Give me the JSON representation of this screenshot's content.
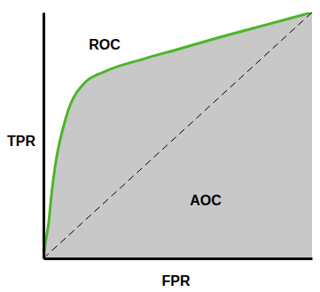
{
  "chart_data": {
    "type": "line",
    "xlabel": "FPR",
    "ylabel": "TPR",
    "annotations": [
      "ROC",
      "AOC"
    ],
    "xlim": [
      0,
      1
    ],
    "ylim": [
      0,
      1
    ],
    "xticks": [],
    "yticks": [],
    "tick_labels": false,
    "series": [
      {
        "type": "area",
        "color": "#4cb528",
        "line_style": "solid",
        "x": [
          0,
          0.007,
          0.02,
          0.03,
          0.043,
          0.086,
          0.15,
          0.23,
          0.37,
          0.5,
          0.66,
          0.83,
          1
        ],
        "values": [
          0,
          0.06,
          0.15,
          0.26,
          0.37,
          0.58,
          0.71,
          0.76,
          0.81,
          0.85,
          0.9,
          0.95,
          1
        ]
      },
      {
        "type": "line",
        "color": "#000000",
        "line_style": "dashed",
        "x": [
          0,
          1
        ],
        "values": [
          0,
          1
        ]
      }
    ]
  }
}
